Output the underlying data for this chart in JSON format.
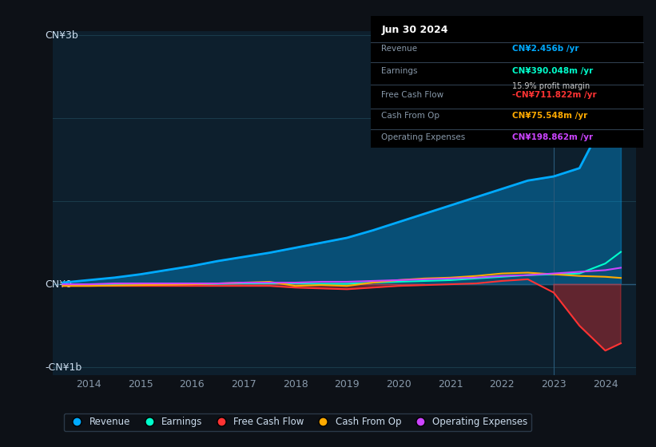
{
  "background_color": "#0d1117",
  "plot_bg_color": "#0d1f2d",
  "years": [
    2013.5,
    2014,
    2014.5,
    2015,
    2015.5,
    2016,
    2016.5,
    2017,
    2017.5,
    2018,
    2018.5,
    2019,
    2019.5,
    2020,
    2020.5,
    2021,
    2021.5,
    2022,
    2022.5,
    2023,
    2023.5,
    2024,
    2024.3
  ],
  "revenue": [
    0.02,
    0.05,
    0.08,
    0.12,
    0.17,
    0.22,
    0.28,
    0.33,
    0.38,
    0.44,
    0.5,
    0.56,
    0.65,
    0.75,
    0.85,
    0.95,
    1.05,
    1.15,
    1.25,
    1.3,
    1.4,
    2.0,
    2.456
  ],
  "earnings": [
    -0.01,
    -0.01,
    -0.01,
    -0.01,
    -0.005,
    0.0,
    0.005,
    0.01,
    0.01,
    0.01,
    0.005,
    0.005,
    0.02,
    0.03,
    0.04,
    0.05,
    0.07,
    0.09,
    0.11,
    0.12,
    0.13,
    0.25,
    0.39
  ],
  "free_cash_flow": [
    -0.02,
    -0.02,
    -0.02,
    -0.02,
    -0.02,
    -0.02,
    -0.02,
    -0.02,
    -0.02,
    -0.04,
    -0.05,
    -0.06,
    -0.04,
    -0.02,
    -0.01,
    0.0,
    0.01,
    0.04,
    0.06,
    -0.1,
    -0.5,
    -0.8,
    -0.712
  ],
  "cash_from_op": [
    -0.02,
    -0.02,
    -0.015,
    -0.01,
    -0.005,
    0.0,
    0.01,
    0.02,
    0.03,
    -0.02,
    -0.01,
    -0.02,
    0.02,
    0.05,
    0.07,
    0.08,
    0.1,
    0.13,
    0.14,
    0.12,
    0.1,
    0.09,
    0.076
  ],
  "operating_expenses": [
    0.0,
    0.0,
    0.01,
    0.01,
    0.01,
    0.01,
    0.01,
    0.02,
    0.02,
    0.02,
    0.03,
    0.03,
    0.04,
    0.05,
    0.06,
    0.07,
    0.08,
    0.1,
    0.11,
    0.13,
    0.15,
    0.17,
    0.199
  ],
  "revenue_color": "#00aaff",
  "earnings_color": "#00ffcc",
  "fcf_color": "#ff3333",
  "cashop_color": "#ffaa00",
  "opex_color": "#cc44ff",
  "grid_color": "#1a3a4a",
  "text_color": "#8899aa",
  "ylabel_top": "CN¥3b",
  "ylabel_bottom": "-CN¥1b",
  "zero_label": "CN¥0",
  "x_ticks": [
    2014,
    2015,
    2016,
    2017,
    2018,
    2019,
    2020,
    2021,
    2022,
    2023,
    2024
  ],
  "ylim": [
    -1.1,
    3.05
  ],
  "divider_x": 2023.0,
  "info_box": {
    "date": "Jun 30 2024",
    "revenue_val": "CN¥2.456b",
    "earnings_val": "CN¥390.048m",
    "profit_margin": "15.9%",
    "fcf_val": "-CN¥711.822m",
    "cashop_val": "CN¥75.548m",
    "opex_val": "CN¥198.862m"
  },
  "legend_items": [
    {
      "label": "Revenue",
      "color": "#00aaff"
    },
    {
      "label": "Earnings",
      "color": "#00ffcc"
    },
    {
      "label": "Free Cash Flow",
      "color": "#ff3333"
    },
    {
      "label": "Cash From Op",
      "color": "#ffaa00"
    },
    {
      "label": "Operating Expenses",
      "color": "#cc44ff"
    }
  ]
}
